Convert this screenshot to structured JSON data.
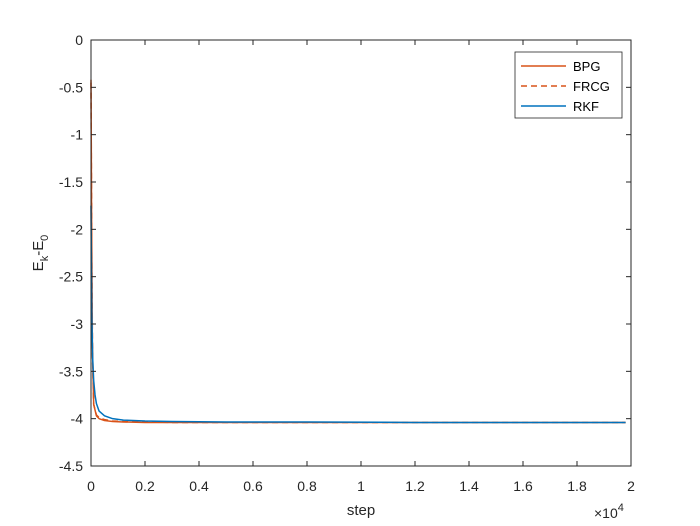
{
  "chart_data": {
    "type": "line",
    "xlabel": "step",
    "ylabel_main": "E",
    "ylabel_sub1": "k",
    "ylabel_mid": "-E",
    "ylabel_sub2": "0",
    "x_multiplier_text": "×10",
    "x_multiplier_exp": "4",
    "xlim": [
      0,
      2
    ],
    "ylim": [
      -4.5,
      0
    ],
    "xticks": [
      0,
      0.2,
      0.4,
      0.6,
      0.8,
      1,
      1.2,
      1.4,
      1.6,
      1.8,
      2
    ],
    "xtick_labels": [
      "0",
      "0.2",
      "0.4",
      "0.6",
      "0.8",
      "1",
      "1.2",
      "1.4",
      "1.6",
      "1.8",
      "2"
    ],
    "yticks": [
      0,
      -0.5,
      -1,
      -1.5,
      -2,
      -2.5,
      -3,
      -3.5,
      -4,
      -4.5
    ],
    "ytick_labels": [
      "0",
      "-0.5",
      "-1",
      "-1.5",
      "-2",
      "-2.5",
      "-3",
      "-3.5",
      "-4",
      "-4.5"
    ],
    "grid": false,
    "legend_position": "top-right",
    "series": [
      {
        "name": "BPG",
        "color": "#D95319",
        "style": "solid",
        "x": [
          0,
          0.002,
          0.005,
          0.01,
          0.02,
          0.03,
          0.05,
          0.08,
          0.12,
          0.2,
          0.3,
          0.5,
          0.8,
          1.2,
          1.6,
          1.98
        ],
        "y": [
          -0.42,
          -1.75,
          -3.2,
          -3.85,
          -3.97,
          -4.0,
          -4.02,
          -4.03,
          -4.035,
          -4.04,
          -4.04,
          -4.04,
          -4.04,
          -4.04,
          -4.04,
          -4.04
        ]
      },
      {
        "name": "FRCG",
        "color": "#D95319",
        "style": "dashed",
        "x": [
          0,
          0.003,
          0.006,
          0.01,
          0.02,
          0.03,
          0.05,
          0.08,
          0.12,
          0.2,
          0.3,
          0.5,
          0.8,
          1.2,
          1.6,
          1.98
        ],
        "y": [
          -0.45,
          -2.3,
          -3.4,
          -3.85,
          -3.96,
          -3.99,
          -4.01,
          -4.025,
          -4.03,
          -4.035,
          -4.04,
          -4.04,
          -4.04,
          -4.04,
          -4.04,
          -4.04
        ]
      },
      {
        "name": "RKF",
        "color": "#0072BD",
        "style": "solid",
        "x": [
          0,
          0.003,
          0.006,
          0.01,
          0.015,
          0.02,
          0.03,
          0.05,
          0.08,
          0.12,
          0.2,
          0.3,
          0.5,
          0.8,
          1.2,
          1.6,
          1.98
        ],
        "y": [
          -1.75,
          -2.9,
          -3.35,
          -3.6,
          -3.75,
          -3.84,
          -3.92,
          -3.97,
          -4.0,
          -4.015,
          -4.025,
          -4.03,
          -4.035,
          -4.035,
          -4.04,
          -4.04,
          -4.04
        ]
      }
    ]
  }
}
